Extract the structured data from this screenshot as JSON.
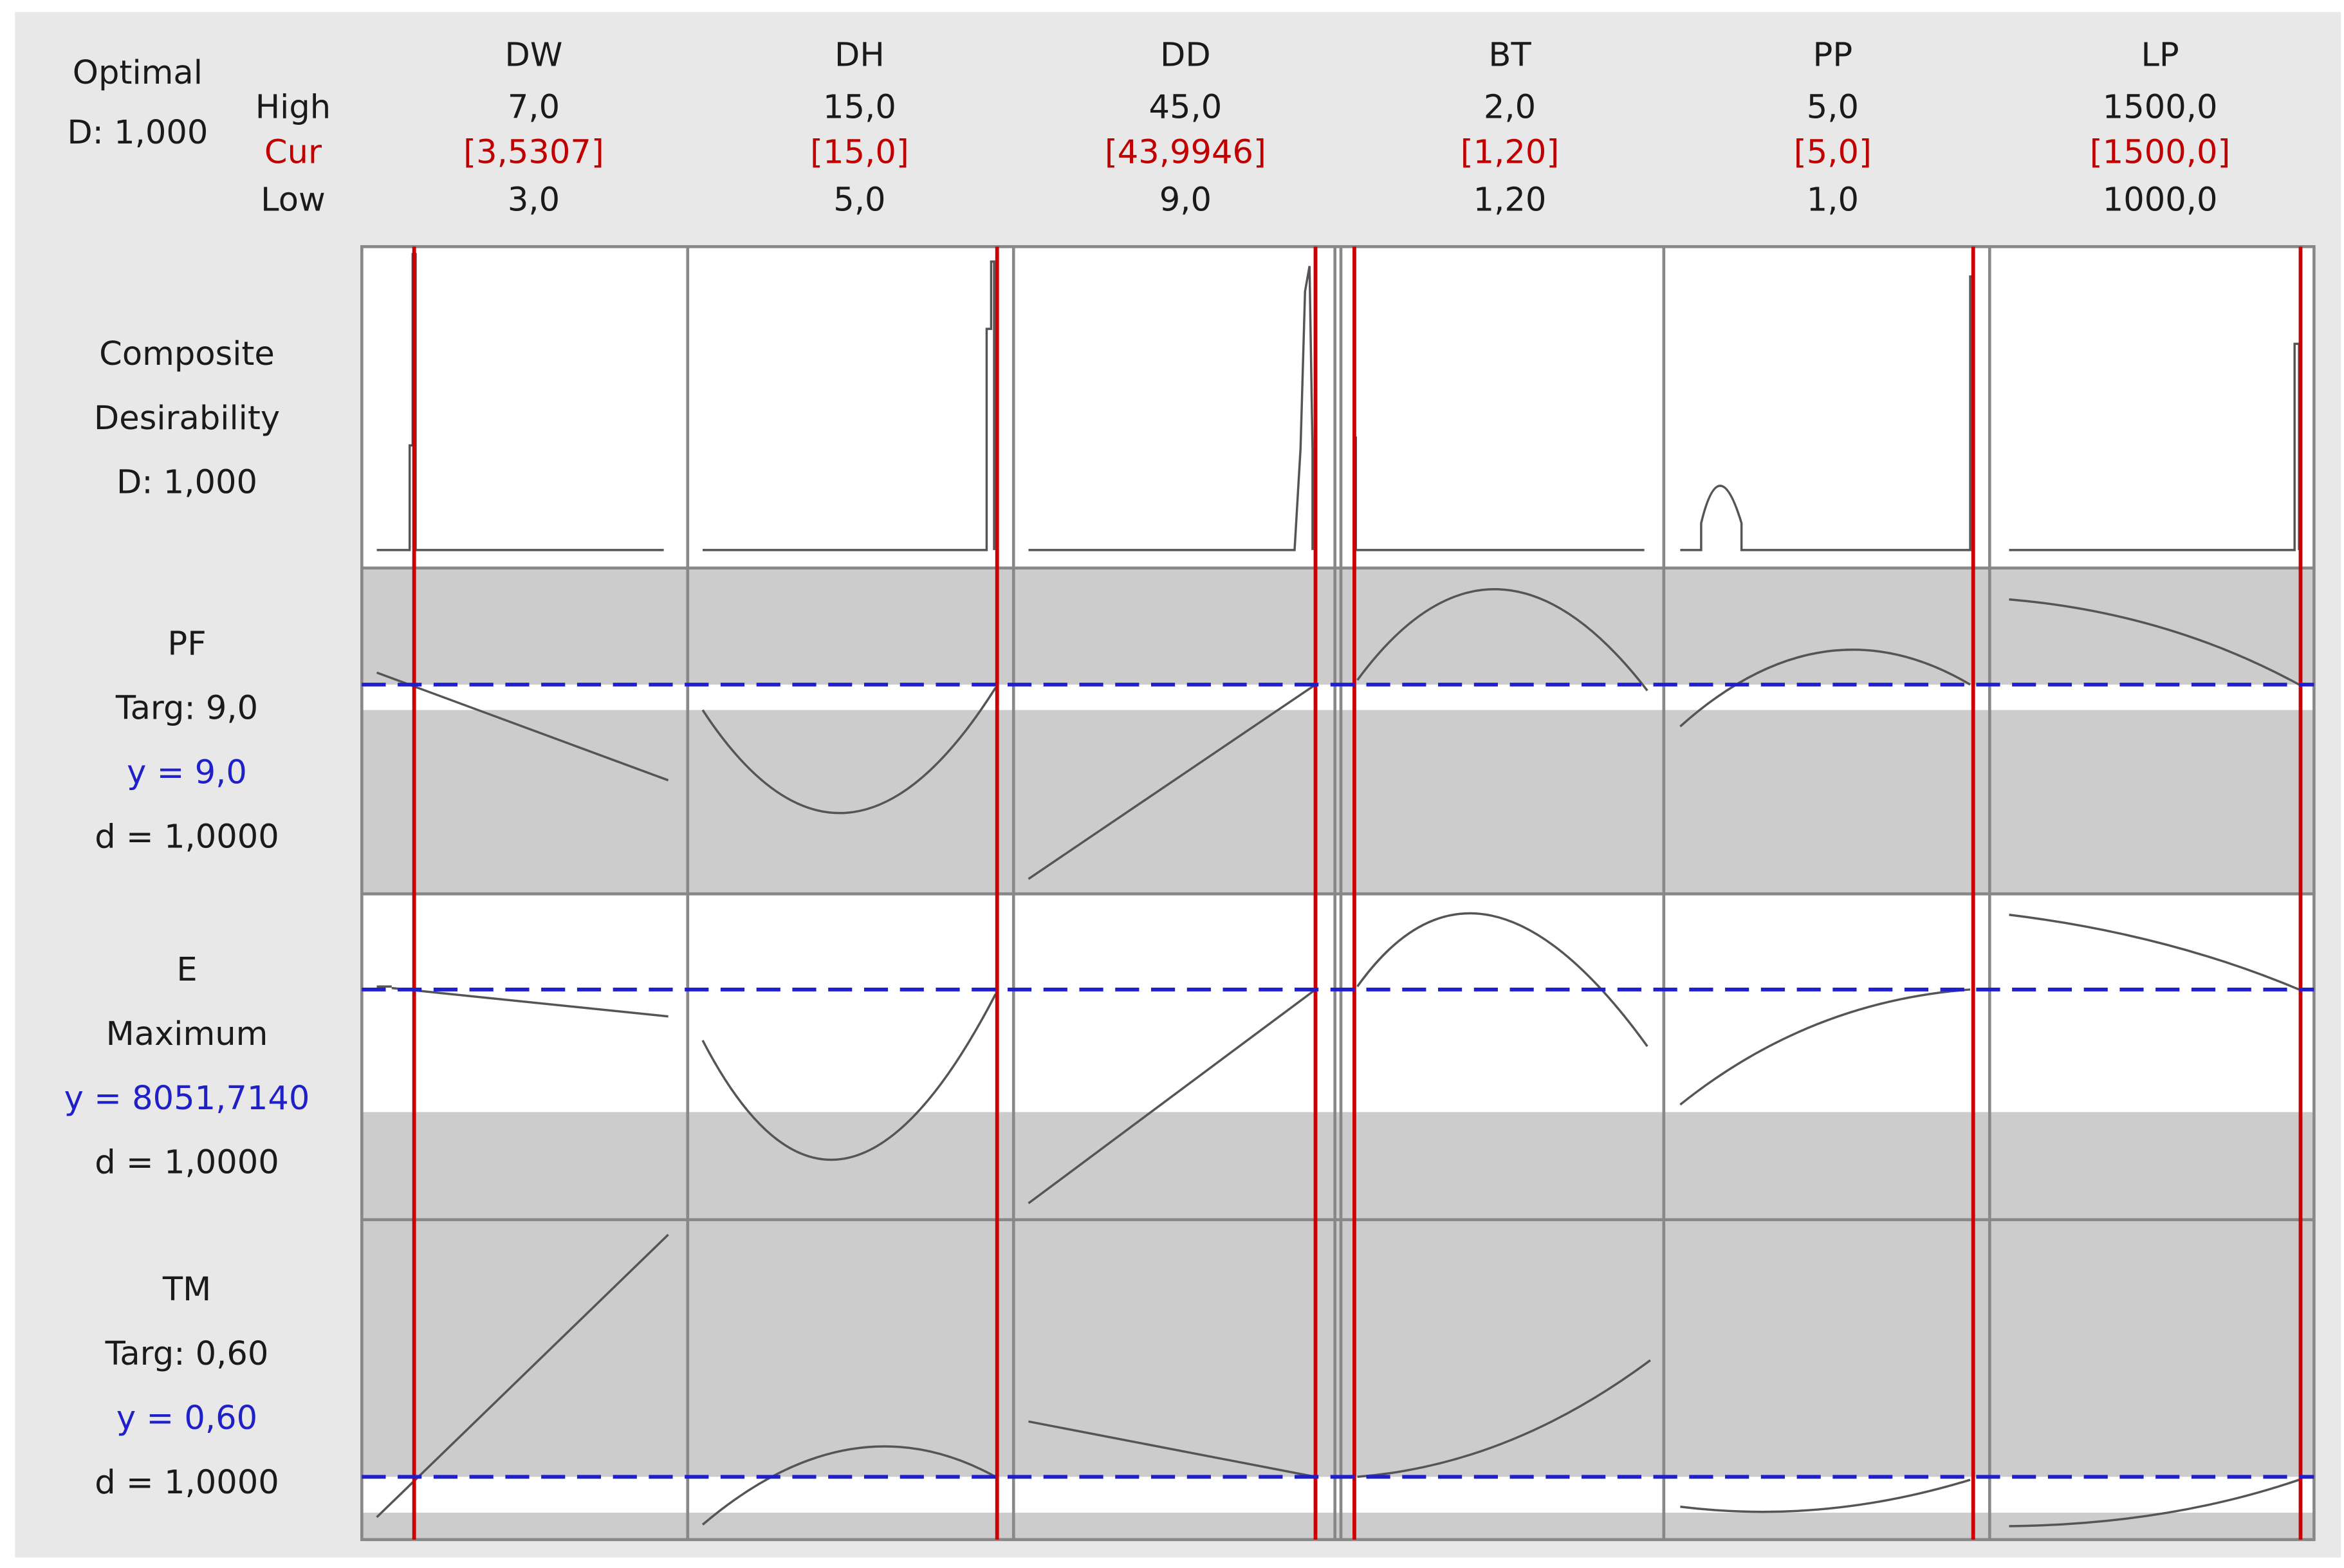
{
  "optimal": {
    "title": "Optimal",
    "d": "D: 1,000"
  },
  "row_labels": {
    "high": "High",
    "cur": "Cur",
    "low": "Low"
  },
  "factors": [
    {
      "name": "DW",
      "high": "7,0",
      "cur": "[3,5307]",
      "low": "3,0"
    },
    {
      "name": "DH",
      "high": "15,0",
      "cur": "[15,0]",
      "low": "5,0"
    },
    {
      "name": "DD",
      "high": "45,0",
      "cur": "[43,9946]",
      "low": "9,0"
    },
    {
      "name": "BT",
      "high": "2,0",
      "cur": "[1,20]",
      "low": "1,20"
    },
    {
      "name": "PP",
      "high": "5,0",
      "cur": "[5,0]",
      "low": "1,0"
    },
    {
      "name": "LP",
      "high": "1500,0",
      "cur": "[1500,0]",
      "low": "1000,0"
    }
  ],
  "composite": {
    "lines": [
      "Composite",
      "Desirability",
      "D: 1,000"
    ]
  },
  "responses": [
    {
      "name": "PF",
      "goal": "Targ: 9,0",
      "y": "y = 9,0",
      "d": "d = 1,0000"
    },
    {
      "name": "E",
      "goal": "Maximum",
      "y": "y = 8051,7140",
      "d": "d = 1,0000"
    },
    {
      "name": "TM",
      "goal": "Targ: 0,60",
      "y": "y = 0,60",
      "d": "d = 1,0000"
    }
  ]
}
